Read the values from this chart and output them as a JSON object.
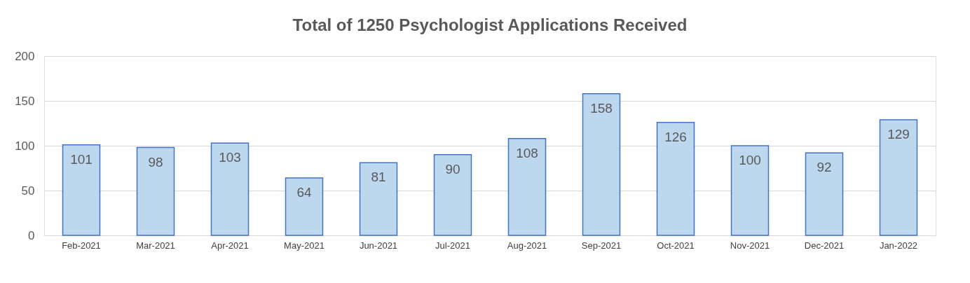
{
  "chart_data": {
    "type": "bar",
    "title": "Total of 1250 Psychologist Applications Received",
    "categories": [
      "Feb-2021",
      "Mar-2021",
      "Apr-2021",
      "May-2021",
      "Jun-2021",
      "Jul-2021",
      "Aug-2021",
      "Sep-2021",
      "Oct-2021",
      "Nov-2021",
      "Dec-2021",
      "Jan-2022"
    ],
    "values": [
      101,
      98,
      103,
      64,
      81,
      90,
      108,
      158,
      126,
      100,
      92,
      129
    ],
    "color": "#bdd7ee",
    "ylim": [
      0,
      200
    ],
    "yticks": [
      0,
      50,
      100,
      150,
      200
    ],
    "grid": "y",
    "data_labels": true
  }
}
